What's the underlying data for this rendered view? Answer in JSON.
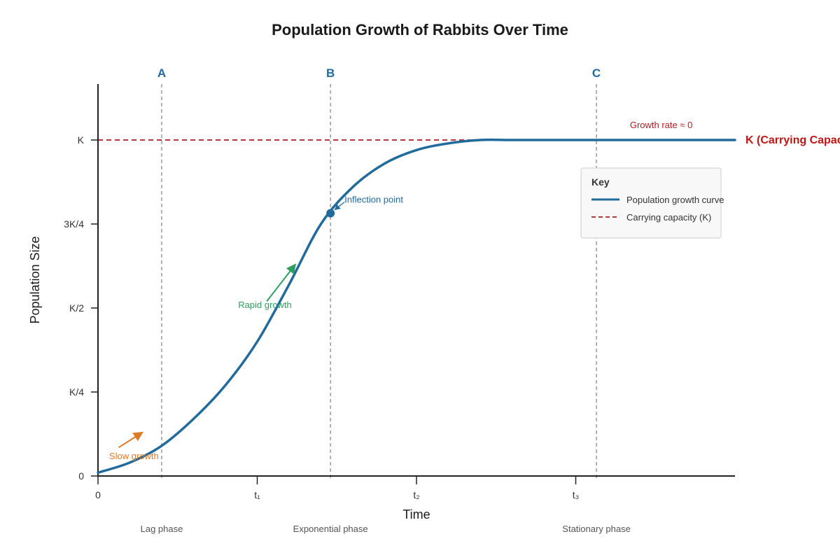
{
  "chart_data": {
    "type": "line",
    "title": "Population Growth of Rabbits Over Time",
    "xlabel": "Time",
    "ylabel": "Population Size",
    "x_ticks": [
      "0",
      "t₁",
      "t₂",
      "t₃"
    ],
    "x_tick_values": [
      0,
      1,
      2,
      3
    ],
    "xlim": [
      0,
      4
    ],
    "y_ticks": [
      "0",
      "K/4",
      "K/2",
      "3K/4",
      "K"
    ],
    "y_tick_values": [
      0,
      0.25,
      0.5,
      0.75,
      1.0
    ],
    "ylim": [
      0,
      1.25
    ],
    "grid": false,
    "legend_position": "right",
    "series": [
      {
        "name": "Population growth curve",
        "color": "#216a9c",
        "style": "solid",
        "x": [
          0,
          0.2,
          0.4,
          0.6,
          0.8,
          1.0,
          1.2,
          1.4,
          1.6,
          1.8,
          2.0,
          2.2,
          2.4,
          2.6,
          2.8,
          3.0,
          3.2,
          3.4,
          3.6,
          3.8,
          4.0
        ],
        "y": [
          0.01,
          0.04,
          0.09,
          0.17,
          0.27,
          0.4,
          0.57,
          0.75,
          0.86,
          0.93,
          0.97,
          0.99,
          1.0,
          1.0,
          1.0,
          1.0,
          1.0,
          1.0,
          1.0,
          1.0,
          1.0
        ]
      },
      {
        "name": "Carrying capacity (K)",
        "color": "#b5393c",
        "style": "dashed",
        "x": [
          0,
          2.4
        ],
        "y": [
          1.0,
          1.0
        ]
      }
    ],
    "vertical_markers": [
      {
        "label": "A",
        "x": 0.4,
        "color": "#216a9c"
      },
      {
        "label": "B",
        "x": 1.46,
        "color": "#216a9c"
      },
      {
        "label": "C",
        "x": 3.13,
        "color": "#216a9c"
      }
    ],
    "inflection_point": {
      "label": "Inflection point",
      "x": 1.46,
      "y": 0.782
    },
    "annotations": [
      {
        "text": "Slow growth",
        "color": "#dc7b25",
        "text_x": 0.07,
        "text_y": 0.05,
        "arrow_from": [
          0.13,
          0.085
        ],
        "arrow_to": [
          0.28,
          0.13
        ]
      },
      {
        "text": "Rapid growth",
        "color": "#2e9e5e",
        "text_x": 0.88,
        "text_y": 0.5,
        "arrow_from": [
          1.06,
          0.52
        ],
        "arrow_to": [
          1.24,
          0.63
        ]
      },
      {
        "text": "Growth rate ≈ 0",
        "color": "#b01e1e",
        "text_x": 3.34,
        "text_y": 1.035
      }
    ],
    "k_label": {
      "text": "K (Carrying Capacity)",
      "color": "#c01515"
    },
    "phases": [
      {
        "label": "Lag phase",
        "x": 0.4
      },
      {
        "label": "Exponential phase",
        "x": 1.46
      },
      {
        "label": "Stationary phase",
        "x": 3.13
      }
    ],
    "legend": {
      "title": "Key",
      "entries": [
        {
          "label": "Population growth curve",
          "color": "#216a9c",
          "style": "solid"
        },
        {
          "label": "Carrying capacity (K)",
          "color": "#b5393c",
          "style": "dashed"
        }
      ]
    }
  }
}
